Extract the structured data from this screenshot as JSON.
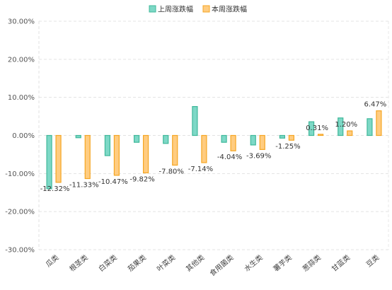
{
  "chart_data": {
    "type": "bar",
    "categories": [
      "瓜类",
      "根茎类",
      "白菜类",
      "茄果类",
      "叶菜类",
      "其他类",
      "食用菌类",
      "水生类",
      "薯芋类",
      "葱蒜类",
      "甘蓝类",
      "豆类"
    ],
    "series": [
      {
        "name": "上周涨跌幅",
        "values": [
          -14.0,
          -0.6,
          -5.3,
          -1.8,
          -2.1,
          7.6,
          -1.8,
          -2.5,
          -0.7,
          3.6,
          4.6,
          4.4
        ],
        "color": "#7dd8c6",
        "stroke": "#3fb89a"
      },
      {
        "name": "本周涨跌幅",
        "values": [
          -12.32,
          -11.33,
          -10.47,
          -9.82,
          -7.8,
          -7.14,
          -4.04,
          -3.69,
          -1.25,
          0.31,
          1.2,
          6.47
        ],
        "labels": [
          "-12.32%",
          "-11.33%",
          "-10.47%",
          "-9.82%",
          "-7.80%",
          "-7.14%",
          "-4.04%",
          "-3.69%",
          "-1.25%",
          "0.31%",
          "1.20%",
          "6.47%"
        ],
        "color": "#ffcc80",
        "stroke": "#f5a623"
      }
    ],
    "y_ticks": [
      "30.00%",
      "20.00%",
      "10.00%",
      "0.00%",
      "-10.00%",
      "-20.00%",
      "-30.00%"
    ],
    "ylim": [
      -30,
      30
    ],
    "grid": true,
    "legend_position": "top-center",
    "title": "",
    "xlabel": "",
    "ylabel": ""
  }
}
